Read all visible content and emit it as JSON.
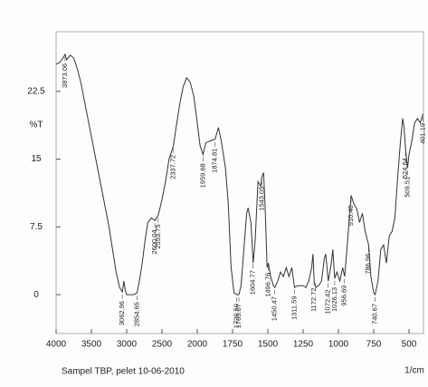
{
  "chart_data": {
    "type": "line",
    "subtitle": "Sampel TBP, pelet 10-06-2010",
    "y_label": "%T",
    "x_label": "1/cm",
    "color": "#333333",
    "grid": false,
    "xlim": [
      4000,
      400
    ],
    "ylim": [
      -4.3,
      29.1
    ],
    "xticks": [
      4000,
      3500,
      3000,
      2500,
      2000,
      1750,
      1500,
      1250,
      1000,
      750,
      500
    ],
    "yticks": [
      0,
      7.5,
      15,
      22.5
    ],
    "x": [
      4000,
      3950,
      3900,
      3873,
      3850,
      3800,
      3750,
      3700,
      3650,
      3600,
      3550,
      3500,
      3450,
      3400,
      3350,
      3300,
      3250,
      3200,
      3150,
      3100,
      3062,
      3040,
      3020,
      3000,
      2950,
      2900,
      2854,
      2820,
      2780,
      2740,
      2700,
      2650,
      2600,
      2553,
      2500,
      2450,
      2400,
      2337,
      2300,
      2250,
      2200,
      2150,
      2100,
      2050,
      2000,
      1980,
      1959,
      1940,
      1910,
      1874,
      1850,
      1830,
      1800,
      1780,
      1760,
      1740,
      1720,
      1705,
      1690,
      1670,
      1650,
      1640,
      1620,
      1604,
      1590,
      1570,
      1550,
      1543,
      1530,
      1520,
      1505,
      1496,
      1480,
      1460,
      1450,
      1430,
      1410,
      1390,
      1370,
      1350,
      1330,
      1311,
      1290,
      1270,
      1250,
      1230,
      1210,
      1190,
      1180,
      1172,
      1160,
      1140,
      1120,
      1100,
      1090,
      1072,
      1050,
      1040,
      1026,
      1010,
      990,
      970,
      956,
      940,
      925,
      910,
      890,
      870,
      850,
      830,
      810,
      786,
      770,
      750,
      740,
      720,
      700,
      680,
      660,
      640,
      620,
      600,
      580,
      560,
      545,
      535,
      524,
      510,
      500,
      480,
      460,
      440,
      420,
      401
    ],
    "values": [
      25.5,
      25.7,
      26.2,
      26.6,
      26.0,
      26.5,
      26.2,
      25.0,
      23.5,
      21.5,
      19.5,
      17.5,
      15.5,
      13.5,
      11.5,
      9.5,
      7.5,
      5.0,
      2.5,
      0.8,
      0.3,
      1.5,
      0.5,
      0.0,
      0.0,
      0.0,
      0.2,
      1.5,
      3.5,
      6.0,
      8.0,
      8.5,
      8.2,
      8.8,
      10.5,
      12.5,
      15.0,
      16.5,
      18.5,
      21.0,
      23.0,
      24.0,
      23.5,
      22.0,
      19.0,
      16.5,
      15.5,
      16.8,
      17.0,
      17.2,
      18.5,
      17.0,
      14.0,
      10.0,
      3.0,
      0.2,
      0.0,
      0.0,
      1.0,
      5.0,
      9.0,
      9.6,
      8.0,
      3.5,
      6.0,
      12.5,
      12.0,
      13.0,
      13.5,
      10.0,
      3.0,
      3.5,
      2.0,
      1.0,
      0.8,
      1.5,
      2.5,
      2.0,
      3.0,
      2.0,
      3.0,
      0.8,
      1.0,
      1.0,
      1.0,
      0.8,
      1.5,
      3.0,
      4.5,
      1.5,
      0.8,
      1.0,
      1.5,
      4.0,
      4.5,
      1.5,
      3.5,
      5.0,
      1.8,
      2.5,
      1.5,
      3.0,
      2.0,
      5.0,
      8.0,
      11.0,
      10.0,
      9.5,
      8.0,
      9.0,
      7.0,
      5.5,
      2.0,
      0.2,
      0.0,
      1.5,
      5.0,
      5.5,
      3.5,
      6.5,
      7.0,
      8.5,
      13.0,
      17.0,
      19.5,
      18.5,
      16.0,
      14.0,
      15.5,
      17.0,
      19.0,
      19.5,
      19.0,
      20.0
    ],
    "peaks": [
      {
        "value": 3873.06,
        "label": "3873.06"
      },
      {
        "value": 3062.96,
        "label": "3062.96"
      },
      {
        "value": 2854.65,
        "label": "2854.65"
      },
      {
        "value": 2600.04,
        "label": "2600.04"
      },
      {
        "value": 2553.75,
        "label": "2553.75"
      },
      {
        "value": 2337.72,
        "label": "2337.72"
      },
      {
        "value": 1959.68,
        "label": "1959.68"
      },
      {
        "value": 1874.81,
        "label": "1874.81"
      },
      {
        "value": 1720.5,
        "label": "1720.50"
      },
      {
        "value": 1705.07,
        "label": "1705.07"
      },
      {
        "value": 1604.77,
        "label": "1604.77"
      },
      {
        "value": 1543.05,
        "label": "1543.05"
      },
      {
        "value": 1496.76,
        "label": "1496.76"
      },
      {
        "value": 1450.47,
        "label": "1450.47"
      },
      {
        "value": 1311.59,
        "label": "1311.59"
      },
      {
        "value": 1172.72,
        "label": "1172.72"
      },
      {
        "value": 1072.42,
        "label": "1072.42"
      },
      {
        "value": 1026.13,
        "label": "1026.13"
      },
      {
        "value": 956.69,
        "label": "956.69"
      },
      {
        "value": 910.4,
        "label": "910.40"
      },
      {
        "value": 786.96,
        "label": "786.96"
      },
      {
        "value": 740.67,
        "label": "740.67"
      },
      {
        "value": 509.51,
        "label": "509.51"
      },
      {
        "value": 524.64,
        "label": "524.64"
      },
      {
        "value": 401.19,
        "label": "401.19"
      }
    ]
  }
}
